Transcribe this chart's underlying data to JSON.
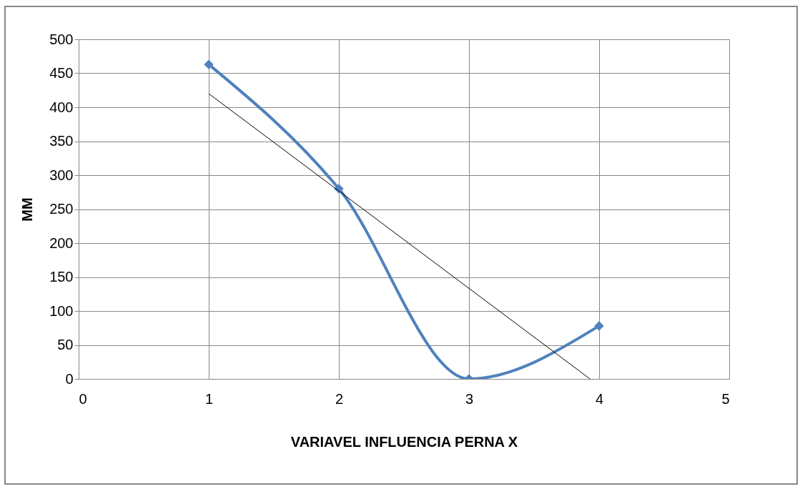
{
  "chart_data": {
    "type": "line",
    "xlabel": "VARIAVEL INFLUENCIA PERNA X",
    "ylabel": "MM",
    "xlim": [
      0,
      5
    ],
    "xticks": [
      0,
      1,
      2,
      3,
      4,
      5
    ],
    "ylim": [
      0,
      500
    ],
    "yticks": [
      0,
      50,
      100,
      150,
      200,
      250,
      300,
      350,
      400,
      450,
      500
    ],
    "grid": true,
    "series": [
      {
        "color": "#4f81bd",
        "x": [
          1,
          2,
          3,
          4
        ],
        "values": [
          463,
          280,
          0,
          78
        ],
        "marker": "diamond"
      },
      {
        "type": "line",
        "color": "#000000",
        "x": [
          1,
          3.93
        ],
        "values": [
          420,
          0
        ],
        "marker": "none"
      }
    ]
  }
}
